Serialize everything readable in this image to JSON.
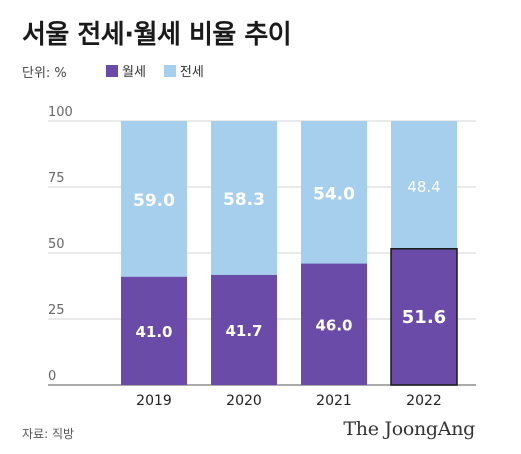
{
  "title": "서울 전세·월세 비율 추이",
  "unit_label": "단위: %",
  "legend": [
    {
      "label": "월세",
      "color": "#6a4ca8"
    },
    {
      "label": "전세",
      "color": "#a6cfed"
    }
  ],
  "source": "자료: 직방",
  "logo_text": "The JoongAng",
  "chart_data": {
    "type": "bar",
    "stacked": true,
    "categories": [
      "2019",
      "2020",
      "2021",
      "2022"
    ],
    "series": [
      {
        "name": "월세",
        "color": "#6a4ca8",
        "values": [
          41.0,
          41.7,
          46.0,
          51.6
        ]
      },
      {
        "name": "전세",
        "color": "#a6cfed",
        "values": [
          59.0,
          58.3,
          54.0,
          48.4
        ]
      }
    ],
    "value_labels": {
      "월세": [
        "41.0",
        "41.7",
        "46.0",
        "51.6"
      ],
      "전세": [
        "59.0",
        "58.3",
        "54.0",
        "48.4"
      ]
    },
    "yticks": [
      "0",
      "25",
      "50",
      "75",
      "100"
    ],
    "ylim": [
      0,
      100
    ],
    "highlight_category": "2022",
    "grid": true,
    "legend_position": "top-left"
  }
}
